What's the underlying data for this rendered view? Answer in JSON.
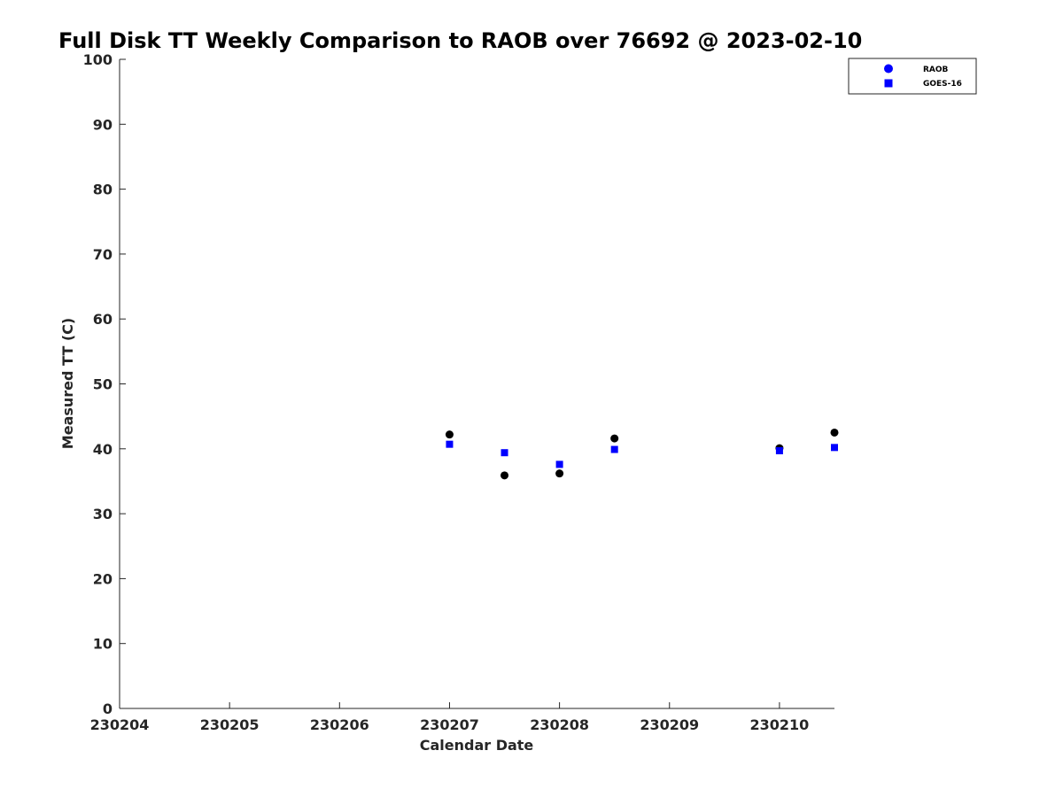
{
  "chart_data": {
    "type": "scatter",
    "title": "Full Disk TT Weekly Comparison to RAOB over 76692 @ 2023-02-10",
    "xlabel": "Calendar Date",
    "ylabel": "Measured TT (C)",
    "xlim": [
      "230204",
      "230210.5"
    ],
    "ylim": [
      0,
      100
    ],
    "x_ticks": [
      "230204",
      "230205",
      "230206",
      "230207",
      "230208",
      "230209",
      "230210"
    ],
    "y_ticks": [
      0,
      10,
      20,
      30,
      40,
      50,
      60,
      70,
      80,
      90,
      100
    ],
    "grid": false,
    "legend_position": "top-right",
    "series": [
      {
        "name": "RAOB",
        "marker": "circle",
        "color": "#000000",
        "legend_color": "#0000ff",
        "x": [
          230207.0,
          230207.5,
          230208.0,
          230208.5,
          230210.0,
          230210.5
        ],
        "y": [
          42.2,
          35.9,
          36.2,
          41.6,
          40.1,
          42.5
        ]
      },
      {
        "name": "GOES-16",
        "marker": "square",
        "color": "#0000ff",
        "legend_color": "#0000ff",
        "x": [
          230207.0,
          230207.5,
          230208.0,
          230208.5,
          230210.0,
          230210.5
        ],
        "y": [
          40.7,
          39.4,
          37.6,
          39.9,
          39.7,
          40.2
        ]
      }
    ]
  }
}
